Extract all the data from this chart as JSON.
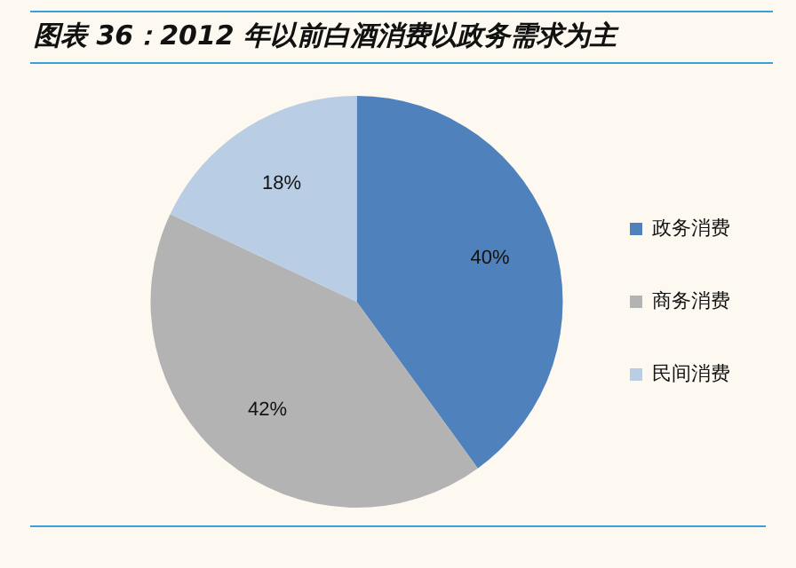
{
  "chart_data": {
    "type": "pie",
    "title": "图表 36：2012 年以前白酒消费以政务需求为主",
    "categories": [
      "政务消费",
      "商务消费",
      "民间消费"
    ],
    "values": [
      40,
      42,
      18
    ],
    "colors": [
      "#4f81bd",
      "#b3b3b3",
      "#b9cde5"
    ],
    "value_labels": [
      "40%",
      "42%",
      "18%"
    ],
    "legend": "right"
  }
}
